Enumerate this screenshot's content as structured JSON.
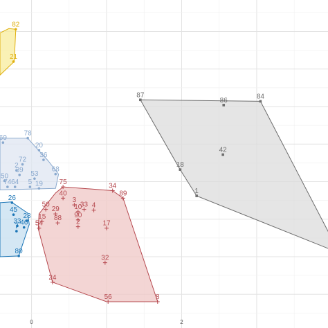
{
  "chart_data": {
    "type": "scatter",
    "title": "",
    "xlabel": "",
    "ylabel": "",
    "xlim": [
      -0.42,
      3.95
    ],
    "ylim": [
      -3.95,
      0.42
    ],
    "grid": true,
    "x_ticks": [
      {
        "value": 0,
        "label": "0"
      },
      {
        "value": 2,
        "label": "2"
      }
    ],
    "clusters": [
      {
        "name": "",
        "color": "#e0b010",
        "fill": "#f8ec9c",
        "marker": "dot",
        "hull": [
          [
            -0.3,
            0.04
          ],
          [
            -0.21,
            0.03
          ],
          [
            -0.23,
            -0.4
          ],
          [
            -0.42,
            -0.58
          ],
          [
            -0.42,
            -0.02
          ]
        ],
        "points": [
          {
            "label": "82",
            "x": -0.21,
            "y": 0.03
          },
          {
            "label": "21",
            "x": -0.24,
            "y": -0.4
          }
        ]
      },
      {
        "name": "",
        "color": "#8aa9ce",
        "fill": "#dfe6f1",
        "marker": "dot",
        "hull": [
          [
            -0.42,
            -1.42
          ],
          [
            -0.05,
            -1.42
          ],
          [
            0.0,
            -1.48
          ],
          [
            0.22,
            -1.72
          ],
          [
            0.36,
            -1.9
          ],
          [
            0.32,
            -2.09
          ],
          [
            -0.42,
            -2.11
          ]
        ],
        "points": [
          {
            "label": "78",
            "x": -0.05,
            "y": -1.42
          },
          {
            "label": "69",
            "x": -0.38,
            "y": -1.48
          },
          {
            "label": "20",
            "x": 0.1,
            "y": -1.58
          },
          {
            "label": "36",
            "x": 0.16,
            "y": -1.71
          },
          {
            "label": "72",
            "x": -0.12,
            "y": -1.77
          },
          {
            "label": "2",
            "x": -0.2,
            "y": -1.85
          },
          {
            "label": "39",
            "x": -0.16,
            "y": -1.91
          },
          {
            "label": "68",
            "x": 0.32,
            "y": -1.9
          },
          {
            "label": "50",
            "x": -0.36,
            "y": -1.99
          },
          {
            "label": "53",
            "x": 0.04,
            "y": -1.96
          },
          {
            "label": "74",
            "x": -0.32,
            "y": -2.07
          },
          {
            "label": "64",
            "x": -0.22,
            "y": -2.07
          },
          {
            "label": "5",
            "x": -0.02,
            "y": -2.07
          },
          {
            "label": "19",
            "x": 0.1,
            "y": -2.09
          }
        ]
      },
      {
        "name": "",
        "color": "#1b75b6",
        "fill": "#c6dff0",
        "marker": "dot",
        "hull": [
          [
            -0.42,
            -2.28
          ],
          [
            -0.27,
            -2.27
          ],
          [
            -0.05,
            -2.42
          ],
          [
            -0.03,
            -2.57
          ],
          [
            -0.17,
            -2.99
          ],
          [
            -0.42,
            -3.0
          ]
        ],
        "points": [
          {
            "label": "26",
            "x": -0.26,
            "y": -2.28
          },
          {
            "label": "45",
            "x": -0.24,
            "y": -2.44
          },
          {
            "label": "28",
            "x": -0.06,
            "y": -2.52
          },
          {
            "label": "33",
            "x": -0.19,
            "y": -2.59
          },
          {
            "label": "46",
            "x": -0.1,
            "y": -2.61
          },
          {
            "label": "7",
            "x": -0.2,
            "y": -2.66
          },
          {
            "label": "80",
            "x": -0.17,
            "y": -2.99
          }
        ]
      },
      {
        "name": "",
        "color": "#b5474d",
        "fill": "#efc7c6",
        "marker": "plus",
        "hull": [
          [
            0.42,
            -2.07
          ],
          [
            1.08,
            -2.12
          ],
          [
            1.22,
            -2.22
          ],
          [
            1.68,
            -3.6
          ],
          [
            1.0,
            -3.6
          ],
          [
            0.28,
            -3.34
          ],
          [
            0.09,
            -2.63
          ],
          [
            0.1,
            -2.43
          ],
          [
            0.32,
            -2.15
          ]
        ],
        "points": [
          {
            "label": "75",
            "x": 0.42,
            "y": -2.07
          },
          {
            "label": "40",
            "x": 0.42,
            "y": -2.22
          },
          {
            "label": "34",
            "x": 1.08,
            "y": -2.12
          },
          {
            "label": "89",
            "x": 1.22,
            "y": -2.22
          },
          {
            "label": "3",
            "x": 0.57,
            "y": -2.31
          },
          {
            "label": "33",
            "x": 0.7,
            "y": -2.37
          },
          {
            "label": "4",
            "x": 0.83,
            "y": -2.38
          },
          {
            "label": "10",
            "x": 0.62,
            "y": -2.4
          },
          {
            "label": "50",
            "x": 0.19,
            "y": -2.37
          },
          {
            "label": "29",
            "x": 0.32,
            "y": -2.43
          },
          {
            "label": "90",
            "x": 0.62,
            "y": -2.51
          },
          {
            "label": "15",
            "x": 0.14,
            "y": -2.53
          },
          {
            "label": "88",
            "x": 0.35,
            "y": -2.55
          },
          {
            "label": "17",
            "x": 1.0,
            "y": -2.62
          },
          {
            "label": "2",
            "x": 0.62,
            "y": -2.6
          },
          {
            "label": "54",
            "x": 0.1,
            "y": -2.62
          },
          {
            "label": "32",
            "x": 0.98,
            "y": -3.08
          },
          {
            "label": "24",
            "x": 0.28,
            "y": -3.34
          },
          {
            "label": "56",
            "x": 1.02,
            "y": -3.6
          },
          {
            "label": "8",
            "x": 1.68,
            "y": -3.6
          }
        ]
      },
      {
        "name": "",
        "color": "#6e6e6e",
        "fill": "#dcdcdc",
        "marker": "square",
        "hull": [
          [
            1.45,
            -0.91
          ],
          [
            3.05,
            -0.93
          ],
          [
            4.1,
            -2.95
          ],
          [
            2.2,
            -2.19
          ],
          [
            1.98,
            -1.84
          ]
        ],
        "points": [
          {
            "label": "87",
            "x": 1.45,
            "y": -0.91
          },
          {
            "label": "86",
            "x": 2.56,
            "y": -0.98
          },
          {
            "label": "84",
            "x": 3.05,
            "y": -0.93
          },
          {
            "label": "42",
            "x": 2.55,
            "y": -1.64
          },
          {
            "label": "18",
            "x": 1.98,
            "y": -1.84
          },
          {
            "label": "1",
            "x": 2.2,
            "y": -2.19
          }
        ]
      }
    ]
  }
}
